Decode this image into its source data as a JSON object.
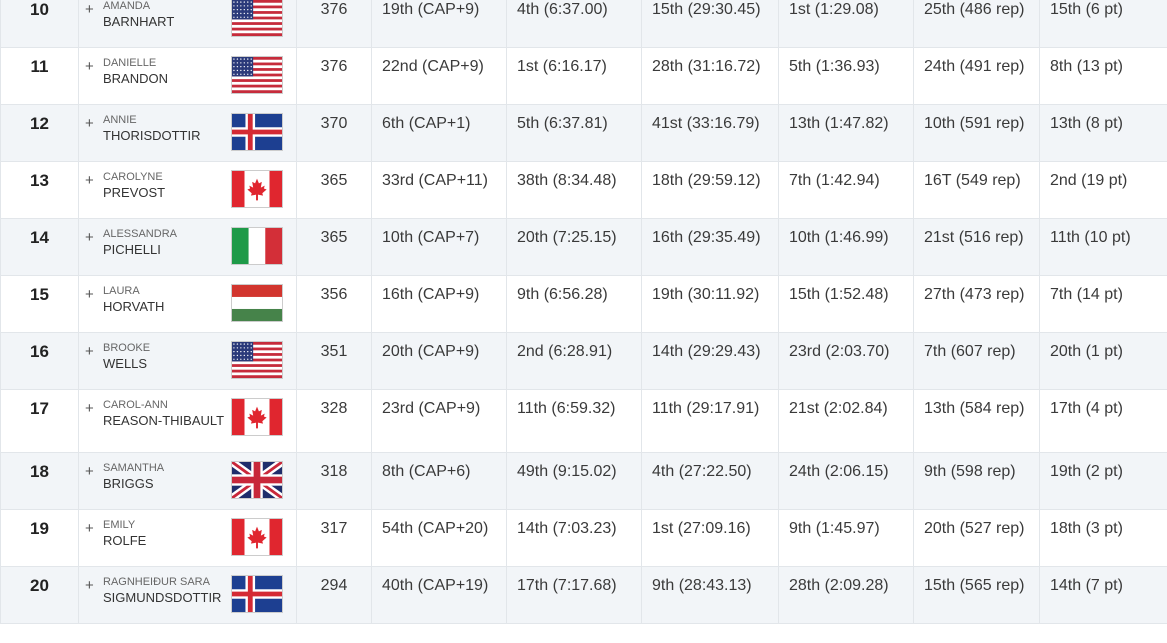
{
  "rows": [
    {
      "rank": "10",
      "first": "AMANDA",
      "last": "BARNHART",
      "flag": "usa",
      "points": "376",
      "e1": "19th (CAP+9)",
      "e2": "4th (6:37.00)",
      "e3": "15th (29:30.45)",
      "e4": "1st (1:29.08)",
      "e5": "25th (486 rep)",
      "e6": "15th (6 pt)"
    },
    {
      "rank": "11",
      "first": "DANIELLE",
      "last": "BRANDON",
      "flag": "usa",
      "points": "376",
      "e1": "22nd (CAP+9)",
      "e2": "1st (6:16.17)",
      "e3": "28th (31:16.72)",
      "e4": "5th (1:36.93)",
      "e5": "24th (491 rep)",
      "e6": "8th (13 pt)"
    },
    {
      "rank": "12",
      "first": "ANNIE",
      "last": "THORISDOTTIR",
      "flag": "iceland",
      "points": "370",
      "e1": "6th (CAP+1)",
      "e2": "5th (6:37.81)",
      "e3": "41st (33:16.79)",
      "e4": "13th (1:47.82)",
      "e5": "10th (591 rep)",
      "e6": "13th (8 pt)"
    },
    {
      "rank": "13",
      "first": "CAROLYNE",
      "last": "PREVOST",
      "flag": "canada",
      "points": "365",
      "e1": "33rd (CAP+11)",
      "e2": "38th (8:34.48)",
      "e3": "18th (29:59.12)",
      "e4": "7th (1:42.94)",
      "e5": "16T (549 rep)",
      "e6": "2nd (19 pt)"
    },
    {
      "rank": "14",
      "first": "ALESSANDRA",
      "last": "PICHELLI",
      "flag": "italy",
      "points": "365",
      "e1": "10th (CAP+7)",
      "e2": "20th (7:25.15)",
      "e3": "16th (29:35.49)",
      "e4": "10th (1:46.99)",
      "e5": "21st (516 rep)",
      "e6": "11th (10 pt)"
    },
    {
      "rank": "15",
      "first": "LAURA",
      "last": "HORVATH",
      "flag": "hungary",
      "points": "356",
      "e1": "16th (CAP+9)",
      "e2": "9th (6:56.28)",
      "e3": "19th (30:11.92)",
      "e4": "15th (1:52.48)",
      "e5": "27th (473 rep)",
      "e6": "7th (14 pt)"
    },
    {
      "rank": "16",
      "first": "BROOKE",
      "last": "WELLS",
      "flag": "usa",
      "points": "351",
      "e1": "20th (CAP+9)",
      "e2": "2nd (6:28.91)",
      "e3": "14th (29:29.43)",
      "e4": "23rd (2:03.70)",
      "e5": "7th (607 rep)",
      "e6": "20th (1 pt)"
    },
    {
      "rank": "17",
      "first": "CAROL-ANN",
      "last": "REASON-THIBAULT",
      "flag": "canada",
      "points": "328",
      "e1": "23rd (CAP+9)",
      "e2": "11th (6:59.32)",
      "e3": "11th (29:17.91)",
      "e4": "21st (2:02.84)",
      "e5": "13th (584 rep)",
      "e6": "17th (4 pt)"
    },
    {
      "rank": "18",
      "first": "SAMANTHA",
      "last": "BRIGGS",
      "flag": "uk",
      "points": "318",
      "e1": "8th (CAP+6)",
      "e2": "49th (9:15.02)",
      "e3": "4th (27:22.50)",
      "e4": "24th (2:06.15)",
      "e5": "9th (598 rep)",
      "e6": "19th (2 pt)"
    },
    {
      "rank": "19",
      "first": "EMILY",
      "last": "ROLFE",
      "flag": "canada",
      "points": "317",
      "e1": "54th (CAP+20)",
      "e2": "14th (7:03.23)",
      "e3": "1st (27:09.16)",
      "e4": "9th (1:45.97)",
      "e5": "20th (527 rep)",
      "e6": "18th (3 pt)"
    },
    {
      "rank": "20",
      "first": "RAGNHEIÐUR SARA",
      "last": "SIGMUNDSDOTTIR",
      "flag": "iceland",
      "points": "294",
      "e1": "40th (CAP+19)",
      "e2": "17th (7:17.68)",
      "e3": "9th (28:43.13)",
      "e4": "28th (2:09.28)",
      "e5": "15th (565 rep)",
      "e6": "14th (7 pt)"
    }
  ],
  "colors": {
    "row_odd": "#f2f5f8",
    "row_even": "#ffffff",
    "border": "#e2e6ea"
  }
}
